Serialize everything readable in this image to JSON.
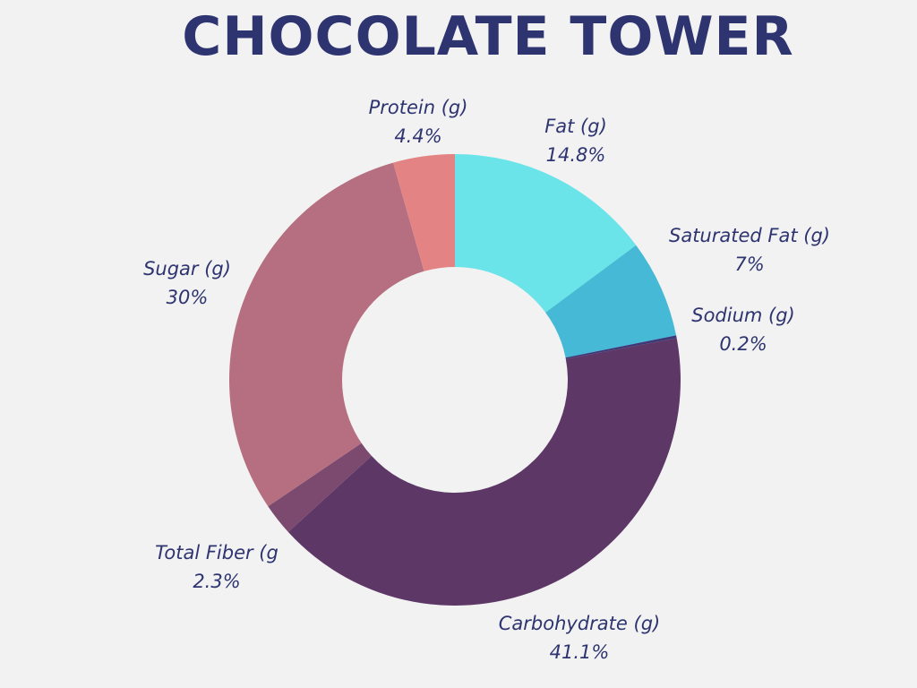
{
  "chart_data": {
    "type": "pie",
    "donut": true,
    "title": "CHOCOLATE TOWER",
    "slices": [
      {
        "label": "Fat (g)",
        "value": 14.8,
        "display": "14.8%",
        "color": "#6be4e9"
      },
      {
        "label": "Saturated Fat (g)",
        "value": 7,
        "display": "7%",
        "color": "#45b9d6"
      },
      {
        "label": "Sodium (g)",
        "value": 0.2,
        "display": "0.2%",
        "color": "#3d3978"
      },
      {
        "label": "Carbohydrate (g)",
        "value": 41.1,
        "display": "41.1%",
        "color": "#5d3766"
      },
      {
        "label": "Total Fiber (g",
        "value": 2.3,
        "display": "2.3%",
        "color": "#7c4a6e"
      },
      {
        "label": "Sugar (g)",
        "value": 30,
        "display": "30%",
        "color": "#b66f80"
      },
      {
        "label": "Protein (g)",
        "value": 4.4,
        "display": "4.4%",
        "color": "#e38384"
      }
    ]
  }
}
